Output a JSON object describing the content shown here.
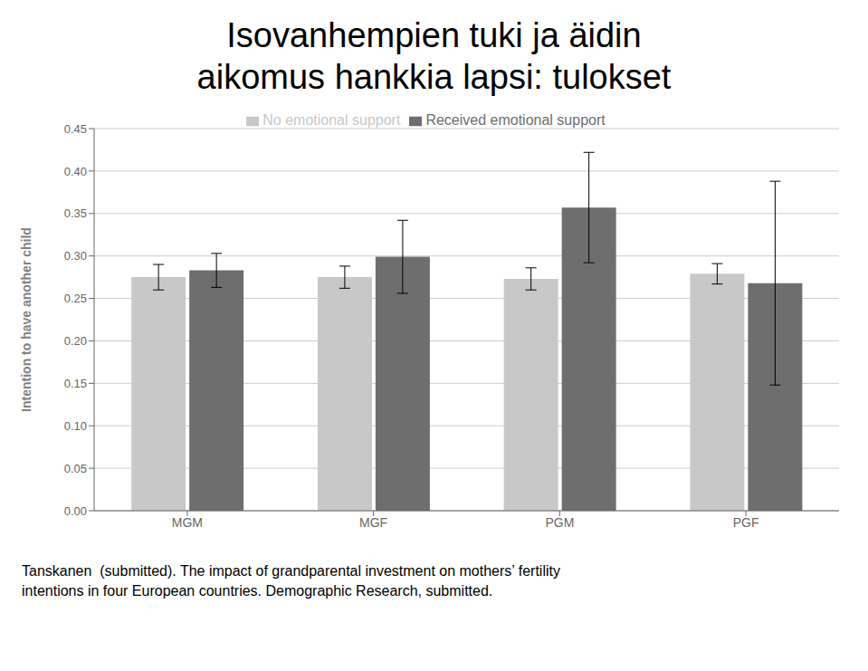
{
  "chart_data": {
    "type": "bar",
    "title": "Isovanhempien tuki ja äidin\naikomus hankkia lapsi: tulokset",
    "ylabel": "Intention to have another child",
    "categories": [
      "MGM",
      "MGF",
      "PGM",
      "PGF"
    ],
    "series": [
      {
        "name": "No emotional support",
        "color": "#c8c8c8",
        "values": [
          0.275,
          0.275,
          0.273,
          0.279
        ],
        "errors": [
          0.015,
          0.013,
          0.013,
          0.012
        ]
      },
      {
        "name": "Received emotional support",
        "color": "#6e6e6e",
        "values": [
          0.283,
          0.299,
          0.357,
          0.268
        ],
        "errors": [
          0.02,
          0.043,
          0.065,
          0.12
        ]
      }
    ],
    "ylim": [
      0,
      0.45
    ],
    "yticks": [
      {
        "value": 0,
        "label": "0.00"
      },
      {
        "value": 0.05,
        "label": "0.05"
      },
      {
        "value": 0.1,
        "label": "0.10"
      },
      {
        "value": 0.15,
        "label": "0.15"
      },
      {
        "value": 0.2,
        "label": "0.20"
      },
      {
        "value": 0.25,
        "label": "0.25"
      },
      {
        "value": 0.3,
        "label": "0.30"
      },
      {
        "value": 0.35,
        "label": "0.35"
      },
      {
        "value": 0.4,
        "label": "0.40"
      },
      {
        "value": 0.45,
        "label": "0.45"
      }
    ],
    "grid": true,
    "legend": "top",
    "annotations": [
      "Tanskanen  (submitted). The impact of grandparental investment on mothers’ fertility",
      "intentions in four European countries. Demographic Research, submitted."
    ]
  }
}
